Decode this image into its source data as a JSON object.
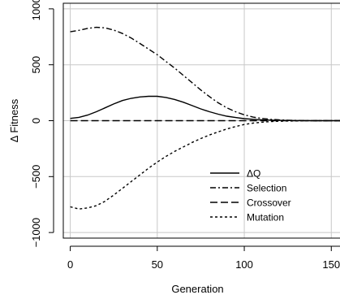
{
  "chart_data": {
    "type": "line",
    "title": "",
    "xlabel": "Generation",
    "ylabel": "Δ Fitness",
    "xlim": [
      -4,
      155
    ],
    "ylim": [
      -1050,
      1050
    ],
    "grid": true,
    "legend_placement": "bottom-right",
    "x_ticks": [
      0,
      50,
      100,
      150
    ],
    "x_tick_labels": [
      "0",
      "50",
      "100",
      "150"
    ],
    "y_ticks": [
      -1000,
      -500,
      0,
      500,
      1000
    ],
    "y_tick_labels": [
      "−1000",
      "−500",
      "0",
      "500",
      "1000"
    ],
    "series": [
      {
        "name": "ΔQ",
        "style": "solid",
        "x": [
          0,
          5,
          10,
          15,
          20,
          25,
          30,
          35,
          40,
          45,
          50,
          55,
          60,
          65,
          70,
          75,
          80,
          85,
          90,
          95,
          100,
          105,
          110,
          115,
          120,
          125,
          130,
          135,
          140,
          145,
          150,
          155
        ],
        "y": [
          20,
          30,
          50,
          80,
          115,
          150,
          180,
          200,
          212,
          218,
          218,
          208,
          190,
          165,
          135,
          105,
          80,
          58,
          40,
          28,
          18,
          12,
          8,
          5,
          3,
          2,
          1,
          1,
          0,
          0,
          0,
          0
        ]
      },
      {
        "name": "Selection",
        "style": "dashdot",
        "x": [
          0,
          5,
          10,
          15,
          20,
          25,
          30,
          35,
          40,
          45,
          50,
          55,
          60,
          65,
          70,
          75,
          80,
          85,
          90,
          95,
          100,
          105,
          110,
          115,
          120,
          125,
          130,
          135,
          140,
          145,
          150,
          155
        ],
        "y": [
          795,
          808,
          825,
          835,
          830,
          810,
          780,
          740,
          690,
          640,
          590,
          530,
          470,
          405,
          340,
          275,
          215,
          160,
          115,
          80,
          52,
          32,
          20,
          12,
          7,
          4,
          2,
          1,
          0,
          0,
          0,
          0
        ]
      },
      {
        "name": "Crossover",
        "style": "dashed",
        "x": [
          0,
          20,
          40,
          60,
          80,
          100,
          120,
          140,
          155
        ],
        "y": [
          0,
          0,
          0,
          0,
          0,
          0,
          0,
          0,
          0
        ]
      },
      {
        "name": "Mutation",
        "style": "dotted",
        "x": [
          0,
          5,
          10,
          15,
          20,
          25,
          30,
          35,
          40,
          45,
          50,
          55,
          60,
          65,
          70,
          75,
          80,
          85,
          90,
          95,
          100,
          105,
          110,
          115,
          120,
          125,
          130,
          135,
          140,
          145,
          150,
          155
        ],
        "y": [
          -770,
          -790,
          -780,
          -760,
          -720,
          -665,
          -605,
          -545,
          -485,
          -425,
          -370,
          -320,
          -275,
          -235,
          -195,
          -160,
          -128,
          -100,
          -74,
          -52,
          -34,
          -22,
          -14,
          -8,
          -5,
          -3,
          -2,
          -1,
          0,
          0,
          0,
          0
        ]
      }
    ]
  }
}
